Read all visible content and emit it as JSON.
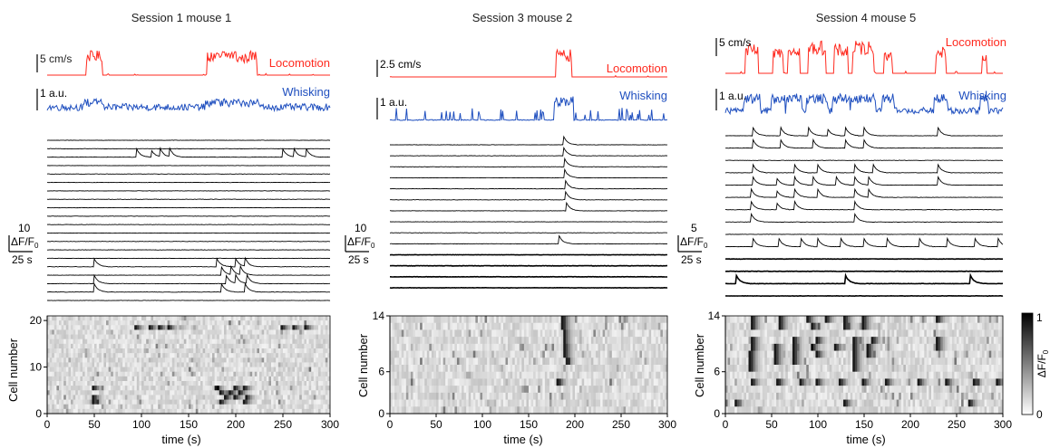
{
  "chart_data": [
    {
      "type": "line",
      "title": "Session 1 mouse 1",
      "locomotion": {
        "label": "Locomotion",
        "scale_label": "5 cm/s",
        "color": "#ff2a1f",
        "bursts": [
          [
            42,
            58,
            0.9
          ],
          [
            170,
            185,
            0.85
          ],
          [
            186,
            200,
            0.95
          ],
          [
            201,
            212,
            0.8
          ],
          [
            213,
            222,
            0.9
          ]
        ]
      },
      "whisking": {
        "label": "Whisking",
        "scale_label": "1 a.u.",
        "color": "#1f4fbf",
        "activity": "continuous"
      },
      "traces": {
        "count": 20,
        "scale_value": "10",
        "scale_unit": "ΔF/F0",
        "time_scale": "25 s",
        "events": [
          {
            "row": 2,
            "times": [
              95,
              110,
              120,
              130,
              250,
              262,
              275
            ]
          },
          {
            "row": 15,
            "times": [
              50,
              180,
              200,
              210
            ]
          },
          {
            "row": 16,
            "times": [
              185,
              195,
              205
            ]
          },
          {
            "row": 17,
            "times": [
              50,
              190,
              200,
              212
            ]
          },
          {
            "row": 18,
            "times": [
              50,
              185,
              210
            ]
          }
        ]
      },
      "heatmap": {
        "ylabel": "Cell number",
        "xlabel": "time (s)",
        "x_ticks": [
          0,
          50,
          100,
          150,
          200,
          250,
          300
        ],
        "y_ticks": [
          0,
          10,
          20
        ],
        "xlim": [
          0,
          300
        ],
        "ylim": [
          0,
          21
        ]
      }
    },
    {
      "type": "line",
      "title": "Session 3 mouse 2",
      "locomotion": {
        "label": "Locomotion",
        "scale_label": "2.5 cm/s",
        "color": "#ff2a1f",
        "bursts": [
          [
            180,
            196,
            0.95
          ]
        ]
      },
      "whisking": {
        "label": "Whisking",
        "scale_label": "1 a.u.",
        "color": "#1f4fbf",
        "activity": "sparse"
      },
      "traces": {
        "count": 14,
        "scale_value": "10",
        "scale_unit": "ΔF/F0",
        "time_scale": "25 s",
        "events": [
          {
            "row": 0,
            "times": [
              188
            ]
          },
          {
            "row": 1,
            "times": [
              188
            ]
          },
          {
            "row": 2,
            "times": [
              189
            ]
          },
          {
            "row": 3,
            "times": [
              189
            ]
          },
          {
            "row": 4,
            "times": [
              190
            ]
          },
          {
            "row": 5,
            "times": [
              190
            ]
          },
          {
            "row": 6,
            "times": [
              191
            ]
          },
          {
            "row": 9,
            "times": [
              183
            ]
          }
        ]
      },
      "heatmap": {
        "ylabel": "Cell number",
        "xlabel": "time (s)",
        "x_ticks": [
          0,
          50,
          100,
          150,
          200,
          250,
          300
        ],
        "y_ticks": [
          0,
          6,
          14
        ],
        "xlim": [
          0,
          300
        ],
        "ylim": [
          0,
          14
        ]
      }
    },
    {
      "type": "line",
      "title": "Session 4 mouse 5",
      "locomotion": {
        "label": "Locomotion",
        "scale_label": "5 cm/s",
        "color": "#ff2a1f",
        "bursts": [
          [
            22,
            35,
            0.8
          ],
          [
            52,
            62,
            0.75
          ],
          [
            68,
            80,
            0.85
          ],
          [
            90,
            108,
            0.9
          ],
          [
            118,
            132,
            0.8
          ],
          [
            138,
            160,
            0.9
          ],
          [
            172,
            180,
            0.6
          ],
          [
            228,
            238,
            0.75
          ],
          [
            278,
            282,
            0.5
          ]
        ]
      },
      "whisking": {
        "label": "Whisking",
        "scale_label": "1 a.u.",
        "color": "#1f4fbf",
        "activity": "bursty"
      },
      "traces": {
        "count": 14,
        "scale_value": "5",
        "scale_unit": "ΔF/F0",
        "time_scale": "25 s",
        "events": [
          {
            "row": 0,
            "times": [
              30,
              60,
              90,
              110,
              130,
              150,
              230
            ]
          },
          {
            "row": 1,
            "times": [
              30,
              60,
              95,
              130,
              150
            ]
          },
          {
            "row": 3,
            "times": [
              30,
              75,
              100,
              140,
              160,
              230
            ]
          },
          {
            "row": 4,
            "times": [
              30,
              55,
              75,
              95,
              120,
              140,
              155,
              230
            ]
          },
          {
            "row": 5,
            "times": [
              28,
              55,
              75,
              100,
              140,
              155
            ]
          },
          {
            "row": 6,
            "times": [
              28,
              55,
              75,
              140
            ]
          },
          {
            "row": 7,
            "times": [
              28,
              140
            ]
          },
          {
            "row": 9,
            "times": [
              30,
              58,
              82,
              100,
              125,
              150,
              175,
              210,
              240,
              270,
              295
            ]
          },
          {
            "row": 12,
            "times": [
              12,
              130,
              265
            ]
          }
        ]
      },
      "heatmap": {
        "ylabel": "Cell number",
        "xlabel": "time (s)",
        "x_ticks": [
          0,
          50,
          100,
          150,
          200,
          250,
          300
        ],
        "y_ticks": [
          0,
          6,
          14
        ],
        "xlim": [
          0,
          300
        ],
        "ylim": [
          0,
          14
        ]
      },
      "colorbar": {
        "label": "ΔF/F0",
        "ticks": [
          "0",
          "1"
        ],
        "range": [
          0,
          1
        ]
      }
    }
  ]
}
